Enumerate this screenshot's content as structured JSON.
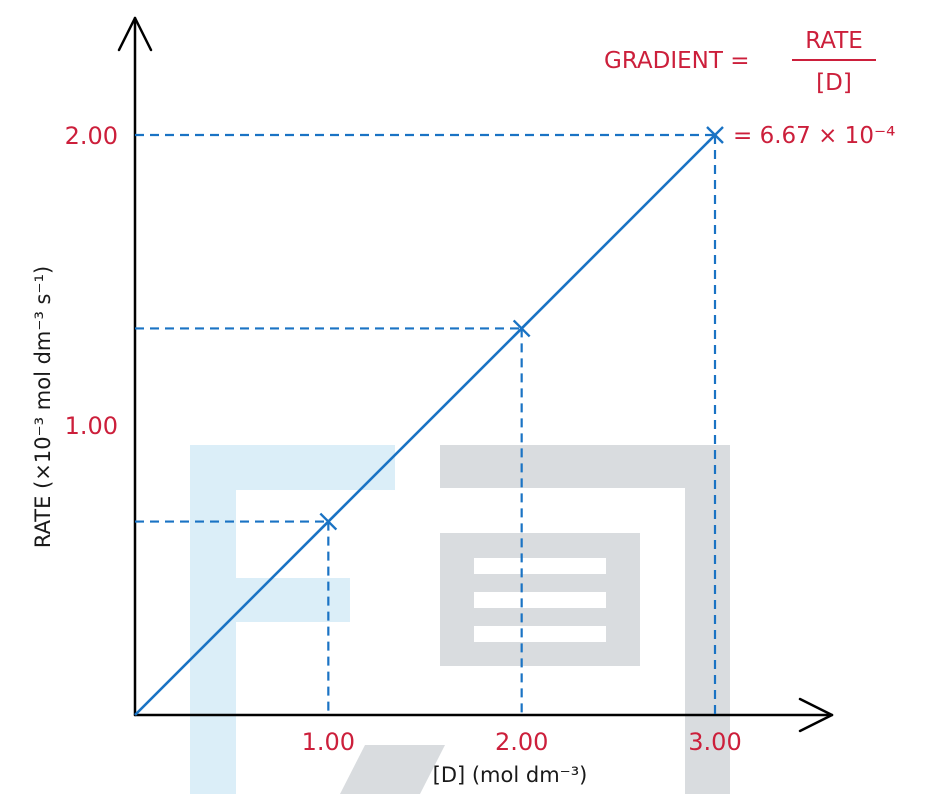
{
  "chart_data": {
    "type": "line",
    "x": [
      0,
      1.0,
      2.0,
      3.0
    ],
    "y": [
      0,
      0.667,
      1.333,
      2.0
    ],
    "points": [
      {
        "x": 1.0,
        "y": 0.667
      },
      {
        "x": 2.0,
        "y": 1.333
      },
      {
        "x": 3.0,
        "y": 2.0
      }
    ],
    "xticks": [
      "1.00",
      "2.00",
      "3.00"
    ],
    "xtick_values": [
      1.0,
      2.0,
      3.0
    ],
    "yticks": [
      "1.00",
      "2.00"
    ],
    "ytick_values": [
      1.0,
      2.0
    ],
    "xlabel": "[D] (mol dm⁻³)",
    "ylabel": "RATE  (×10⁻³ mol dm⁻³ s⁻¹)",
    "xlim": [
      0,
      3.0
    ],
    "ylim": [
      0,
      2.0
    ],
    "grid": false,
    "annotation": {
      "gradient_label": "GRADIENT =",
      "numerator": "RATE",
      "denominator": "[D]",
      "result": "= 6.67 × 10⁻⁴"
    },
    "colors": {
      "line": "#1a73c4",
      "labels": "#cc1f3b",
      "axes": "#000000"
    }
  }
}
